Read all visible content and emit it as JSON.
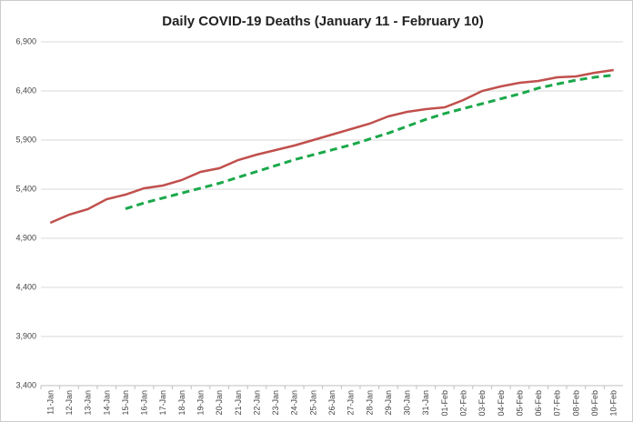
{
  "chart_data": {
    "type": "line",
    "title": "Daily COVID-19 Deaths (January 11 - February 10)",
    "categories": [
      "11-Jan",
      "12-Jan",
      "13-Jan",
      "14-Jan",
      "15-Jan",
      "16-Jan",
      "17-Jan",
      "18-Jan",
      "19-Jan",
      "20-Jan",
      "21-Jan",
      "22-Jan",
      "23-Jan",
      "24-Jan",
      "25-Jan",
      "26-Jan",
      "27-Jan",
      "28-Jan",
      "29-Jan",
      "30-Jan",
      "31-Jan",
      "01-Feb",
      "02-Feb",
      "03-Feb",
      "04-Feb",
      "05-Feb",
      "06-Feb",
      "07-Feb",
      "08-Feb",
      "09-Feb",
      "10-Feb"
    ],
    "series": [
      {
        "color": "#c0504d",
        "dashed": false,
        "values": [
          5057,
          5141,
          5196,
          5298,
          5344,
          5409,
          5437,
          5493,
          5576,
          5613,
          5696,
          5752,
          5798,
          5844,
          5900,
          5956,
          6011,
          6067,
          6141,
          6187,
          6215,
          6233,
          6307,
          6400,
          6446,
          6483,
          6502,
          6539,
          6548,
          6585,
          6613
        ]
      },
      {
        "color": "#1aa84a",
        "dashed": true,
        "values": [
          null,
          null,
          null,
          null,
          5200,
          5260,
          5310,
          5360,
          5410,
          5460,
          5520,
          5580,
          5640,
          5700,
          5750,
          5800,
          5850,
          5910,
          5970,
          6040,
          6110,
          6170,
          6220,
          6270,
          6320,
          6370,
          6430,
          6470,
          6510,
          6540,
          6560
        ]
      }
    ],
    "ylim": [
      3400,
      6900
    ],
    "yticks": [
      {
        "value": 3400,
        "label": "3,400"
      },
      {
        "value": 3900,
        "label": "3,900"
      },
      {
        "value": 4400,
        "label": "4,400"
      },
      {
        "value": 4900,
        "label": "4,900"
      },
      {
        "value": 5400,
        "label": "5,400"
      },
      {
        "value": 5900,
        "label": "5,900"
      },
      {
        "value": 6400,
        "label": "6,400"
      },
      {
        "value": 6900,
        "label": "6,900"
      }
    ],
    "grid": true
  }
}
